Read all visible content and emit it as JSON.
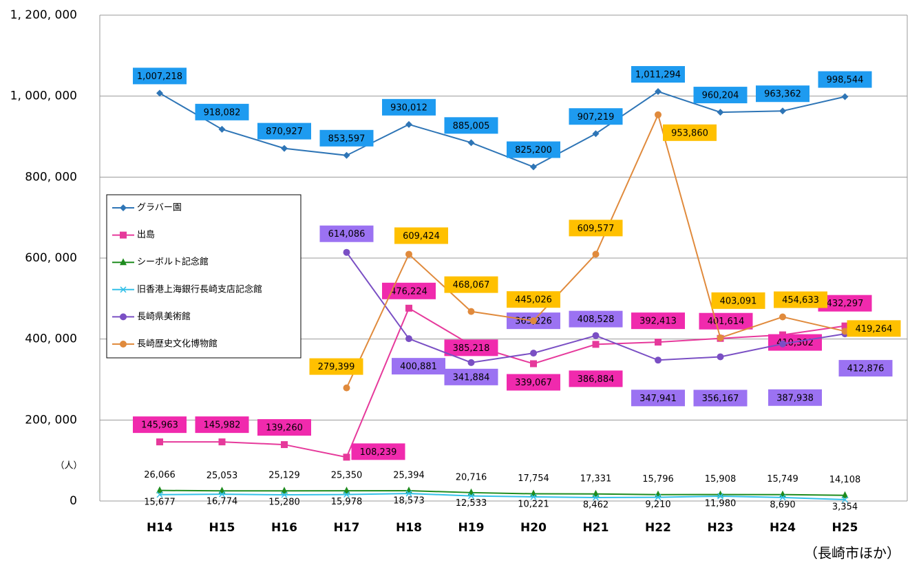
{
  "chart_data": {
    "type": "line",
    "categories": [
      "H14",
      "H15",
      "H16",
      "H17",
      "H18",
      "H19",
      "H20",
      "H21",
      "H22",
      "H23",
      "H24",
      "H25"
    ],
    "ylim": [
      0,
      1200000
    ],
    "yticks": [
      0,
      {
        "value": 200000,
        "label": "200, 000"
      },
      {
        "value": 400000,
        "label": "400, 000"
      },
      {
        "value": 600000,
        "label": "600, 000"
      },
      {
        "value": 800000,
        "label": "800, 000"
      },
      {
        "value": 1000000,
        "label": "1, 000, 000"
      },
      {
        "value": 1200000,
        "label": "1, 200, 000"
      }
    ],
    "grid": true,
    "unit_label": "（人）",
    "source": "（長崎市ほか）",
    "legend": "left",
    "series": [
      {
        "name": "グラバー園",
        "color": "#2e75b6",
        "marker": "diamond",
        "label_color": "#1e9bf0",
        "values": [
          1007218,
          918082,
          870927,
          853597,
          930012,
          885005,
          825200,
          907219,
          1011294,
          960204,
          963362,
          998544
        ],
        "value_labels": [
          "1,007,218",
          "918,082",
          "870,927",
          "853,597",
          "930,012",
          "885,005",
          "825,200",
          "907,219",
          "1,011,294",
          "960,204",
          "963,362",
          "998,544"
        ]
      },
      {
        "name": "出島",
        "color": "#e6399b",
        "marker": "square",
        "label_color": "#f02aad",
        "values": [
          145963,
          145982,
          139260,
          108239,
          476224,
          385218,
          339067,
          386884,
          392413,
          401614,
          410302,
          432297
        ],
        "value_labels": [
          "145,963",
          "145,982",
          "139,260",
          "108,239",
          "476,224",
          "385,218",
          "339,067",
          "386,884",
          "392,413",
          "401,614",
          "410,302",
          "432,297"
        ]
      },
      {
        "name": "シーボルト記念館",
        "color": "#1e8c1e",
        "marker": "triangle",
        "values": [
          26066,
          25053,
          25129,
          25350,
          25394,
          20716,
          17754,
          17331,
          15796,
          15908,
          15749,
          14108
        ],
        "value_labels": [
          "26,066",
          "25,053",
          "25,129",
          "25,350",
          "25,394",
          "20,716",
          "17,754",
          "17,331",
          "15,796",
          "15,908",
          "15,749",
          "14,108"
        ]
      },
      {
        "name": "旧香港上海銀行長崎支店記念館",
        "color": "#33c0e8",
        "marker": "x",
        "values": [
          15677,
          16774,
          15280,
          15978,
          18573,
          12533,
          10221,
          8462,
          9210,
          11980,
          8690,
          3354
        ],
        "value_labels": [
          "15,677",
          "16,774",
          "15,280",
          "15,978",
          "18,573",
          "12,533",
          "10,221",
          "8,462",
          "9,210",
          "11,980",
          "8,690",
          "3,354"
        ]
      },
      {
        "name": "長崎県美術館",
        "color": "#7a4fc4",
        "marker": "circle",
        "label_color": "#9b72f2",
        "values": [
          null,
          null,
          null,
          614086,
          400881,
          341884,
          365226,
          408528,
          347941,
          356167,
          387938,
          412876
        ],
        "value_labels": [
          null,
          null,
          null,
          "614,086",
          "400,881",
          "341,884",
          "365,226",
          "408,528",
          "347,941",
          "356,167",
          "387,938",
          "412,876"
        ]
      },
      {
        "name": "長崎歴史文化博物館",
        "color": "#e08a3c",
        "marker": "circle",
        "label_color": "#ffc000",
        "values": [
          null,
          null,
          null,
          279399,
          609424,
          468067,
          445026,
          609577,
          953860,
          403091,
          454633,
          419264
        ],
        "value_labels": [
          null,
          null,
          null,
          "279,399",
          "609,424",
          "468,067",
          "445,026",
          "609,577",
          "953,860",
          "403,091",
          "454,633",
          "419,264"
        ]
      }
    ]
  }
}
